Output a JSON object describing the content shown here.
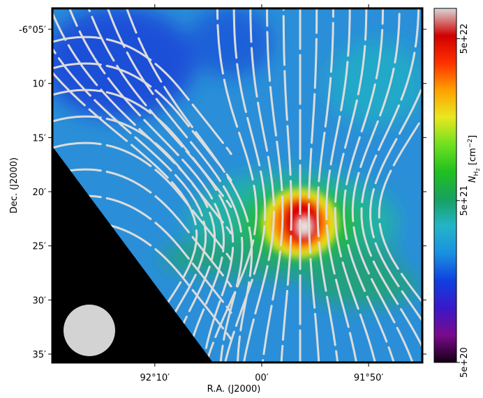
{
  "chart_data": {
    "type": "image",
    "xlabel": "R.A. (J2000)",
    "ylabel": "Dec. (J2000)",
    "xlim": [
      92.3265,
      91.7496
    ],
    "ylim": [
      -6.5962,
      -6.0511
    ],
    "xticks": [
      {
        "value": 92.1667,
        "label": "92°10′"
      },
      {
        "value": 92.0,
        "label": "00′"
      },
      {
        "value": 91.8333,
        "label": "91°50′"
      }
    ],
    "yticks": [
      {
        "value": -6.0833,
        "label": "-6°05′"
      },
      {
        "value": -6.1667,
        "label": "10′"
      },
      {
        "value": -6.25,
        "label": "15′"
      },
      {
        "value": -6.3333,
        "label": "20′"
      },
      {
        "value": -6.4167,
        "label": "25′"
      },
      {
        "value": -6.5,
        "label": "30′"
      },
      {
        "value": -6.5833,
        "label": "35′"
      }
    ],
    "colorbar": {
      "log": true,
      "lim": [
        5e+20,
        7.7e+22
      ],
      "ticks": [
        {
          "value": 5e+20,
          "label": "5e+20"
        },
        {
          "value": 5e+21,
          "label": "5e+21"
        },
        {
          "value": 5e+22,
          "label": "5e+22"
        }
      ],
      "label_symbol": "N",
      "label_sub": "H",
      "label_subsub": "2",
      "label_unit": " [cm",
      "label_exp": "−2",
      "label_close": "]",
      "colormap": [
        "#140014",
        "#7a0a8c",
        "#3a18c8",
        "#1040e0",
        "#1a90e0",
        "#24b4c8",
        "#18a060",
        "#20c020",
        "#70e020",
        "#e8e820",
        "#ffa000",
        "#ff3000",
        "#d00000",
        "#d8d8d8"
      ]
    }
  }
}
